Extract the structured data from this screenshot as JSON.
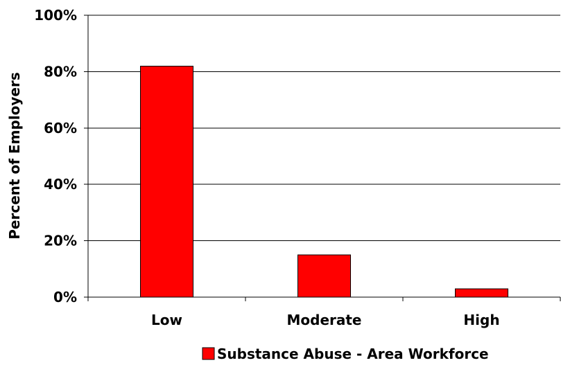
{
  "chart_data": {
    "type": "bar",
    "title": "",
    "xlabel": "",
    "ylabel": "Percent of Employers",
    "categories": [
      "Low",
      "Moderate",
      "High"
    ],
    "series": [
      {
        "name": "Substance Abuse - Area Workforce",
        "values": [
          82,
          15,
          3
        ],
        "color": "#ff0000"
      }
    ],
    "ylim": [
      0,
      100
    ],
    "yticks": [
      0,
      20,
      40,
      60,
      80,
      100
    ],
    "ytick_labels": [
      "0%",
      "20%",
      "40%",
      "60%",
      "80%",
      "100%"
    ],
    "grid": true,
    "legend_position": "bottom"
  }
}
